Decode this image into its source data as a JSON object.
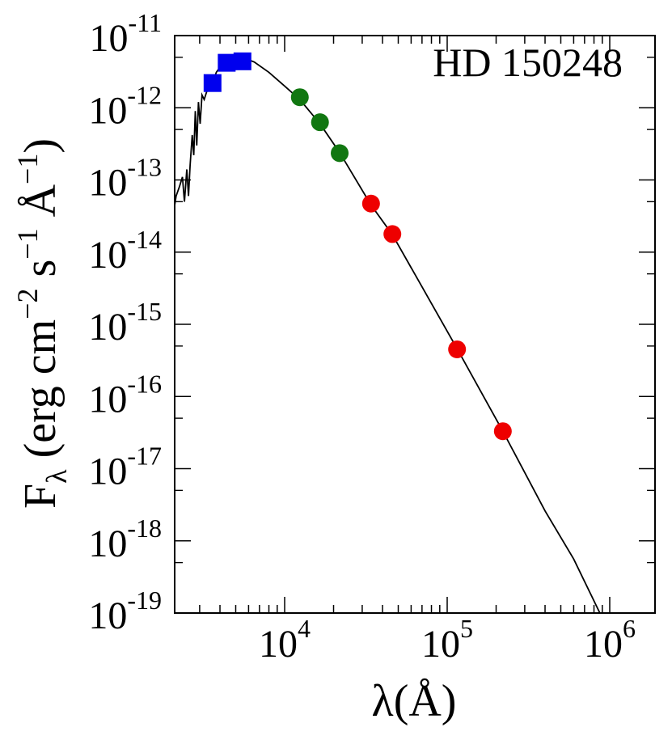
{
  "chart_data": {
    "type": "scatter",
    "title": "HD 150248",
    "xlabel": "λ(Å)",
    "ylabel": "Fλ (erg cm−2 s−1 Å−1)",
    "x_scale": "log",
    "y_scale": "log",
    "xlim": [
      2000,
      1400000
    ],
    "ylim": [
      1e-19,
      1e-11
    ],
    "x_tick_labels": [
      {
        "value": 10000,
        "base": "10",
        "exp": "4"
      },
      {
        "value": 100000,
        "base": "10",
        "exp": "5"
      },
      {
        "value": 1000000,
        "base": "10",
        "exp": "6"
      }
    ],
    "y_tick_labels": [
      {
        "value": 1e-11,
        "base": "10",
        "exp": "-11"
      },
      {
        "value": 1e-12,
        "base": "10",
        "exp": "-12"
      },
      {
        "value": 1e-13,
        "base": "10",
        "exp": "-13"
      },
      {
        "value": 1e-14,
        "base": "10",
        "exp": "-14"
      },
      {
        "value": 1e-15,
        "base": "10",
        "exp": "-15"
      },
      {
        "value": 1e-16,
        "base": "10",
        "exp": "-16"
      },
      {
        "value": 1e-17,
        "base": "10",
        "exp": "-17"
      },
      {
        "value": 1e-18,
        "base": "10",
        "exp": "-18"
      },
      {
        "value": 1e-19,
        "base": "10",
        "exp": "-19"
      }
    ],
    "grid": false,
    "series": [
      {
        "marker": "square",
        "color": "#0000ee",
        "points": [
          [
            3600,
            2.2e-12
          ],
          [
            4400,
            4.2e-12
          ],
          [
            5500,
            4.4e-12
          ]
        ]
      },
      {
        "marker": "circle",
        "color": "#117711",
        "points": [
          [
            12400,
            1.4e-12
          ],
          [
            16500,
            6.3e-13
          ],
          [
            21800,
            2.35e-13
          ]
        ]
      },
      {
        "marker": "circle",
        "color": "#ee0000",
        "points": [
          [
            34000,
            4.7e-14
          ],
          [
            46000,
            1.78e-14
          ],
          [
            115000,
            4.5e-16
          ],
          [
            220000,
            3.3e-17
          ]
        ]
      },
      {
        "marker": "line",
        "color": "#000000",
        "points": [
          [
            2000,
            1.2e-14
          ],
          [
            2050,
            3e-14
          ],
          [
            2150,
            6e-14
          ],
          [
            2250,
            8e-14
          ],
          [
            2350,
            1.1e-13
          ],
          [
            2420,
            5e-14
          ],
          [
            2500,
            1.4e-13
          ],
          [
            2560,
            6e-14
          ],
          [
            2620,
            1.6e-13
          ],
          [
            2700,
            4.2e-13
          ],
          [
            2760,
            2.2e-13
          ],
          [
            2820,
            9e-13
          ],
          [
            2880,
            3e-13
          ],
          [
            2950,
            1.2e-12
          ],
          [
            3020,
            6e-13
          ],
          [
            3100,
            1.5e-12
          ],
          [
            3200,
            1.3e-12
          ],
          [
            3350,
            1.8e-12
          ],
          [
            3500,
            2.2e-12
          ],
          [
            3650,
            2.4e-12
          ],
          [
            3800,
            3.1e-12
          ],
          [
            3950,
            3.5e-12
          ],
          [
            4100,
            4.2e-12
          ],
          [
            4300,
            4.5e-12
          ],
          [
            4600,
            4.9e-12
          ],
          [
            5000,
            5.1e-12
          ],
          [
            5600,
            4.9e-12
          ],
          [
            6500,
            4.3e-12
          ],
          [
            8000,
            3.1e-12
          ],
          [
            10000,
            2e-12
          ],
          [
            12400,
            1.3e-12
          ],
          [
            16500,
            6e-13
          ],
          [
            21800,
            2.4e-13
          ],
          [
            34000,
            4.5e-14
          ],
          [
            46000,
            1.75e-14
          ],
          [
            70000,
            3.3e-15
          ],
          [
            115000,
            4.6e-16
          ],
          [
            220000,
            3.3e-17
          ],
          [
            400000,
            2.6e-18
          ],
          [
            600000,
            5.6e-19
          ],
          [
            870000,
            1e-19
          ]
        ]
      }
    ]
  }
}
